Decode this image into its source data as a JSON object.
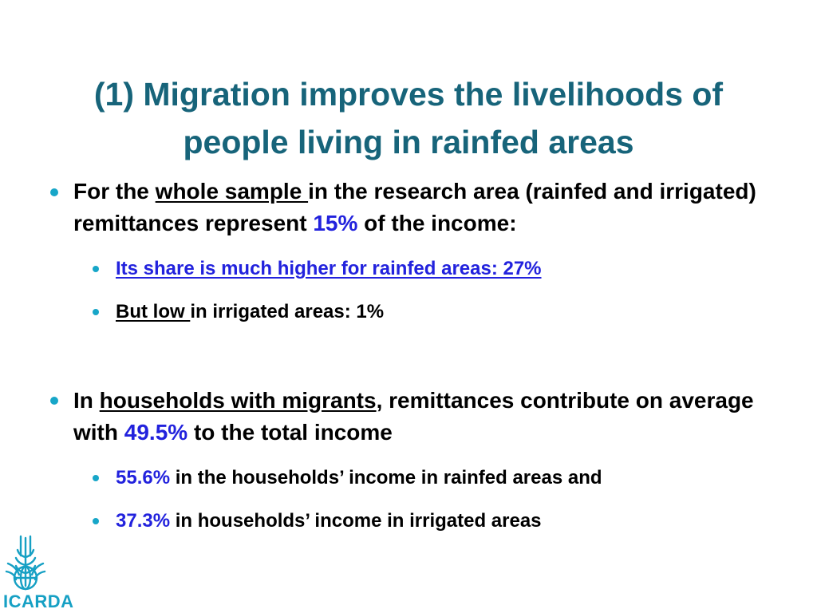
{
  "slide": {
    "title_line1": "(1) Migration improves the livelihoods of",
    "title_line2": "people living in rainfed areas",
    "bullet1": {
      "prefix": "For the ",
      "underlined": "whole sample ",
      "rest": "in the research area (rainfed and irrigated) remittances represent ",
      "highlight": "15%",
      "suffix": " of the income:"
    },
    "sub1a": "Its share is much higher for rainfed areas: 27%",
    "sub1b": {
      "underlined": "But low ",
      "rest": "in irrigated areas: 1%"
    },
    "bullet2": {
      "prefix": "In ",
      "underlined": "households with migrants",
      "rest": ", remittances contribute on average with ",
      "highlight": "49.5%",
      "suffix": " to the total income"
    },
    "sub2a": {
      "highlight": "55.6%",
      "rest": " in the households’ income in rainfed areas and"
    },
    "sub2b": {
      "highlight": "37.3%",
      "rest": " in households’ income in irrigated areas"
    }
  },
  "logo": {
    "text": "ICARDA",
    "icon": "icarda-wheat-globe-logo"
  },
  "colors": {
    "title": "#17647a",
    "bullet": "#17a6c8",
    "highlight": "#2222dd",
    "logo": "#16a0c4"
  }
}
